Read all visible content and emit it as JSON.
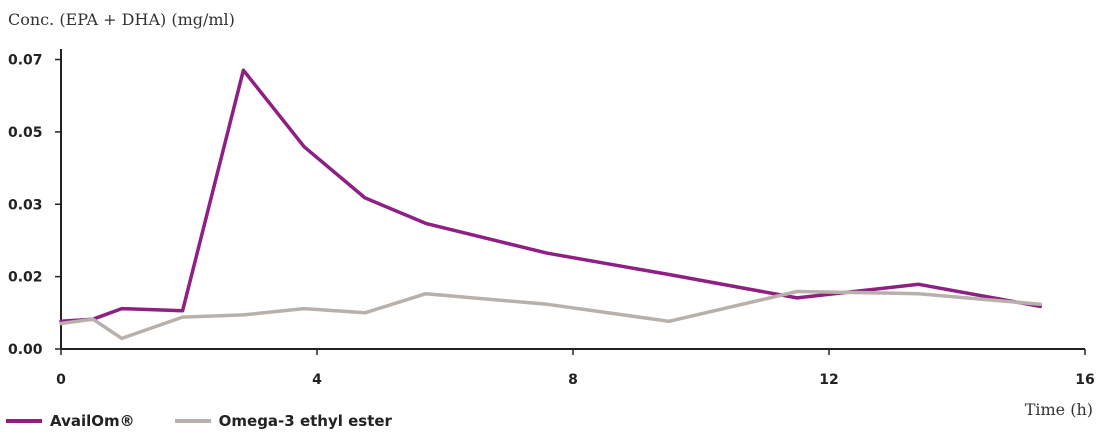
{
  "chart_data": {
    "type": "line",
    "ylabel": "Conc. (EPA + DHA) (mg/ml)",
    "xlabel": "Time (h)",
    "xlim": [
      0,
      16
    ],
    "ylim": [
      0,
      0.07
    ],
    "xticks": [
      0,
      4,
      8,
      12,
      16
    ],
    "xtick_labels": [
      "0",
      "4",
      "8",
      "12",
      "16"
    ],
    "yticks": [
      0,
      0.017,
      0.034,
      0.051,
      0.068
    ],
    "ytick_labels": [
      "0.00",
      "0.02",
      "0.03",
      "0.05",
      "0.07"
    ],
    "legend_position": "bottom-left",
    "series": [
      {
        "name": "AvailOm®",
        "color": "#8e1f83",
        "x": [
          0,
          0.5,
          0.95,
          1.9,
          2.85,
          3.8,
          4.75,
          5.7,
          7.6,
          9.5,
          11.5,
          13.4,
          15.3
        ],
        "y": [
          0.0065,
          0.007,
          0.0095,
          0.009,
          0.0655,
          0.0475,
          0.0355,
          0.0295,
          0.0225,
          0.0175,
          0.012,
          0.0152,
          0.01
        ]
      },
      {
        "name": "Omega-3 ethyl ester",
        "color": "#b7b0ab",
        "x": [
          0,
          0.5,
          0.95,
          1.9,
          2.85,
          3.8,
          4.75,
          5.7,
          7.6,
          9.5,
          11.5,
          13.4,
          15.3
        ],
        "y": [
          0.006,
          0.007,
          0.0025,
          0.0075,
          0.008,
          0.0095,
          0.0085,
          0.013,
          0.0105,
          0.0065,
          0.0135,
          0.013,
          0.0105
        ]
      }
    ]
  }
}
